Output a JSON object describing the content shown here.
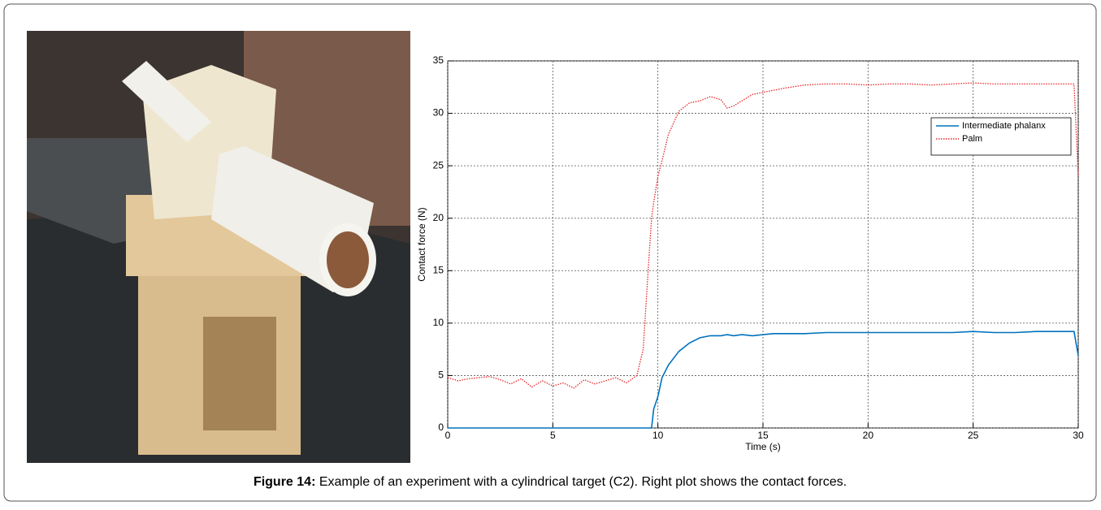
{
  "chart_data": {
    "type": "line",
    "x_label": "Time (s)",
    "y_label": "Contact force (N)",
    "xlim": [
      0,
      30
    ],
    "ylim": [
      0,
      35
    ],
    "xticks": [
      0,
      5,
      10,
      15,
      20,
      25,
      30
    ],
    "yticks": [
      0,
      5,
      10,
      15,
      20,
      25,
      30,
      35
    ],
    "grid": true,
    "legend": "upper right",
    "x": [
      0,
      0.5,
      1,
      1.5,
      2,
      2.5,
      3,
      3.5,
      4,
      4.5,
      5,
      5.5,
      6,
      6.5,
      7,
      7.5,
      8,
      8.5,
      9,
      9.3,
      9.6,
      9.7,
      9.8,
      10,
      10.2,
      10.5,
      11,
      11.5,
      12,
      12.5,
      13,
      13.3,
      13.6,
      14,
      14.5,
      15,
      15.5,
      16,
      17,
      18,
      19,
      20,
      21,
      22,
      23,
      24,
      25,
      26,
      27,
      28,
      29,
      29.8,
      30
    ],
    "series": [
      {
        "name": "Intermediate phalanx",
        "color": "#0072bd",
        "style": "solid",
        "values": [
          0,
          0,
          0,
          0,
          0,
          0,
          0,
          0,
          0,
          0,
          0,
          0,
          0,
          0,
          0,
          0,
          0,
          0,
          0,
          0,
          0,
          0,
          1.8,
          3.0,
          4.8,
          6.0,
          7.3,
          8.1,
          8.6,
          8.8,
          8.8,
          8.9,
          8.8,
          8.9,
          8.8,
          8.9,
          9.0,
          9.0,
          9.0,
          9.1,
          9.1,
          9.1,
          9.1,
          9.1,
          9.1,
          9.1,
          9.2,
          9.1,
          9.1,
          9.2,
          9.2,
          9.2,
          6.9
        ]
      },
      {
        "name": "Palm",
        "color": "#e8272a",
        "style": "dotted",
        "values": [
          4.8,
          4.5,
          4.7,
          4.8,
          4.9,
          4.6,
          4.2,
          4.7,
          3.9,
          4.5,
          4.0,
          4.3,
          3.8,
          4.6,
          4.2,
          4.5,
          4.8,
          4.3,
          5.0,
          7.5,
          17,
          20,
          21.5,
          24,
          25.5,
          28,
          30.2,
          31.0,
          31.2,
          31.6,
          31.3,
          30.5,
          30.7,
          31.2,
          31.8,
          32.0,
          32.2,
          32.4,
          32.7,
          32.8,
          32.8,
          32.7,
          32.8,
          32.8,
          32.7,
          32.8,
          32.9,
          32.8,
          32.8,
          32.8,
          32.8,
          32.8,
          24
        ]
      }
    ]
  },
  "caption": {
    "label": "Figure 14:",
    "text": "Example of an experiment with a cylindrical target (C2). Right plot shows the contact forces."
  }
}
